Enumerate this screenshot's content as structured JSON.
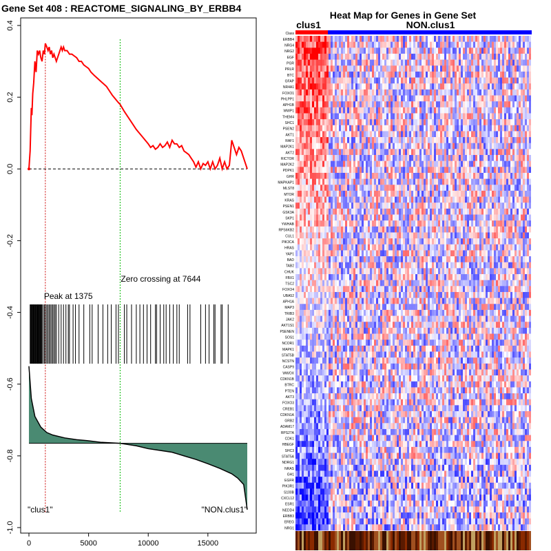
{
  "chart_data": [
    {
      "type": "line",
      "title": "Gene Set  408 : REACTOME_SIGNALING_BY_ERBB4",
      "xlim": [
        0,
        18500
      ],
      "ylim": [
        -1.0,
        0.4
      ],
      "x_ticks": [
        "0",
        "5000",
        "10000",
        "15000"
      ],
      "x_tick_values": [
        0,
        5000,
        10000,
        15000
      ],
      "y_ticks": [
        "-1.0",
        "-0.8",
        "-0.6",
        "-0.4",
        "-0.2",
        "0.0",
        "0.2",
        "0.4"
      ],
      "y_tick_values": [
        -1.0,
        -0.8,
        -0.6,
        -0.4,
        -0.2,
        0.0,
        0.2,
        0.4
      ],
      "series": [
        {
          "name": "running enrichment score",
          "color": "#ff0000",
          "x": [
            0,
            100,
            200,
            250,
            320,
            400,
            500,
            600,
            700,
            800,
            900,
            1000,
            1100,
            1200,
            1300,
            1375,
            1500,
            1600,
            1700,
            1800,
            1900,
            2000,
            2100,
            2200,
            2300,
            2400,
            2500,
            2600,
            2700,
            2800,
            2900,
            3000,
            3200,
            3400,
            3600,
            3800,
            4000,
            4200,
            4400,
            4600,
            4800,
            5000,
            5200,
            5500,
            6000,
            6500,
            7000,
            7500,
            7644,
            8000,
            8500,
            9000,
            9500,
            10000,
            10200,
            10400,
            10600,
            10800,
            11000,
            11200,
            11400,
            11600,
            11800,
            12000,
            12200,
            12400,
            12600,
            12800,
            13000,
            13200,
            13400,
            13600,
            13800,
            14000,
            14200,
            14400,
            14600,
            14800,
            15000,
            15200,
            15400,
            15600,
            15800,
            16000,
            16200,
            16400,
            16600,
            16800,
            17000,
            17200,
            17400,
            17600,
            17800,
            18000,
            18300
          ],
          "y": [
            0.0,
            0.05,
            0.17,
            0.15,
            0.21,
            0.24,
            0.3,
            0.27,
            0.33,
            0.32,
            0.33,
            0.31,
            0.3,
            0.33,
            0.32,
            0.35,
            0.34,
            0.33,
            0.34,
            0.32,
            0.33,
            0.31,
            0.32,
            0.31,
            0.3,
            0.31,
            0.32,
            0.33,
            0.34,
            0.33,
            0.34,
            0.33,
            0.33,
            0.32,
            0.32,
            0.315,
            0.31,
            0.3,
            0.3,
            0.29,
            0.285,
            0.28,
            0.27,
            0.26,
            0.245,
            0.23,
            0.205,
            0.185,
            0.18,
            0.16,
            0.135,
            0.11,
            0.09,
            0.07,
            0.06,
            0.065,
            0.055,
            0.06,
            0.07,
            0.06,
            0.065,
            0.075,
            0.06,
            0.08,
            0.07,
            0.07,
            0.06,
            0.065,
            0.05,
            0.045,
            0.04,
            0.03,
            0.02,
            0.005,
            0.02,
            0.0,
            0.015,
            0.01,
            0.02,
            0.0,
            0.02,
            0.0,
            0.01,
            0.03,
            0.0,
            0.02,
            0.0,
            0.01,
            0.08,
            0.06,
            0.04,
            0.06,
            0.05,
            0.03,
            0.0
          ]
        }
      ],
      "hits": [
        100,
        150,
        200,
        250,
        300,
        350,
        400,
        450,
        500,
        550,
        600,
        650,
        700,
        750,
        800,
        850,
        900,
        950,
        1000,
        1050,
        1100,
        1200,
        1300,
        1400,
        1500,
        1600,
        1700,
        1800,
        1900,
        2000,
        2100,
        2200,
        2300,
        2500,
        2700,
        2900,
        3100,
        3300,
        3400,
        3700,
        3900,
        4200,
        4600,
        5100,
        5300,
        5800,
        6200,
        6600,
        6900,
        7300,
        7500,
        8000,
        8200,
        8600,
        9000,
        9300,
        9600,
        9900,
        10200,
        10600,
        10700,
        11000,
        11300,
        11500,
        11800,
        12100,
        12400,
        12600,
        13300,
        13500,
        14400,
        14800,
        15100,
        15500,
        15600,
        16100,
        16200,
        16700
      ],
      "ranked_metric": {
        "x": [
          0,
          200,
          500,
          1000,
          1500,
          2000,
          3000,
          4000,
          5000,
          6000,
          7644,
          9000,
          10000,
          11000,
          12000,
          13000,
          14000,
          15000,
          16000,
          17000,
          17500,
          18000,
          18300
        ],
        "y": [
          -0.55,
          -0.64,
          -0.69,
          -0.72,
          -0.735,
          -0.742,
          -0.75,
          -0.755,
          -0.758,
          -0.762,
          -0.765,
          -0.772,
          -0.78,
          -0.785,
          -0.79,
          -0.8,
          -0.81,
          -0.822,
          -0.835,
          -0.85,
          -0.862,
          -0.88,
          -0.95
        ],
        "baseline": -0.765,
        "fill_color": "#4a8a72"
      },
      "peak": {
        "x": 1375,
        "label": "Peak at 1375",
        "color": "#cc0000"
      },
      "zero_crossing": {
        "x": 7644,
        "label": "Zero crossing at 7644",
        "color": "#00bb00"
      },
      "corner_labels": {
        "left": "\"clus1\"",
        "right": "\"NON.clus1\""
      },
      "dashed_zero_line": 0.0
    },
    {
      "type": "heatmap",
      "title": "Heat Map for Genes in Gene Set",
      "group_labels": [
        "clus1",
        "NON.clus1"
      ],
      "group_colors": [
        "#ff0000",
        "#0000ff"
      ],
      "class_label": "Class",
      "genes": [
        "ERBB4",
        "NRG4",
        "NRG2",
        "EGF",
        "PGR",
        "PRLR",
        "BTC",
        "GFAP",
        "NR4A1",
        "FOXO1",
        "PHLPP1",
        "APH1B",
        "WWP1",
        "THEM4",
        "SHC1",
        "PSEN2",
        "AKT1",
        "RAF1",
        "MAP2K1",
        "AKT2",
        "RICTOR",
        "MAP2K2",
        "PDPK1",
        "GHR",
        "MAPKAP1",
        "MLST8",
        "MTOR",
        "KRAS",
        "PSEN1",
        "GSK3A",
        "SKP1",
        "YWHAB",
        "RPS6KB2",
        "CUL1",
        "PIK3CA",
        "HRAS",
        "YAP1",
        "BAD",
        "TAB2",
        "CHUK",
        "FBX1",
        "TSC2",
        "FOXO4",
        "UBA52",
        "APH1A",
        "MAP3",
        "TRIB3",
        "JAK2",
        "AKT1S1",
        "PSENEN",
        "SOS1",
        "NCOR1",
        "MAPK1",
        "STAT5B",
        "NCSTN",
        "CASP9",
        "WWOX",
        "CDKN1B",
        "BTRC",
        "PTEN",
        "AKT3",
        "FOXO3",
        "CREB1",
        "CDKN1A",
        "GRB2",
        "ADAM17",
        "RPS27A",
        "CDK1",
        "HBEGF",
        "SHC3",
        "STAT5A",
        "NDRG1",
        "NRAS",
        "GH1",
        "EGFR",
        "PIK3R1",
        "S100B",
        "CXCL12",
        "ESR1",
        "NEDD4",
        "ERBB3",
        "EREG",
        "NRG1"
      ]
    }
  ]
}
